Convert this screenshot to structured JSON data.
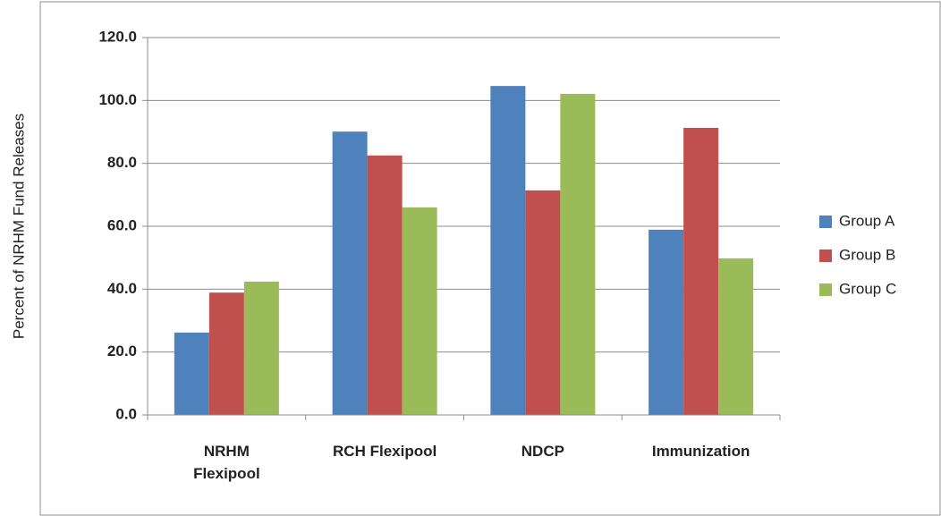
{
  "chart_data": {
    "type": "bar",
    "y_label": "Percent of NRHM Fund Releases",
    "categories": [
      "NRHM Flexipool",
      "RCH Flexipool",
      "NDCP",
      "Immunization"
    ],
    "series": [
      {
        "name": "Group A",
        "color": "#4f81bd",
        "values": [
          26.2,
          90.1,
          104.6,
          58.9
        ]
      },
      {
        "name": "Group B",
        "color": "#c0504d",
        "values": [
          38.9,
          82.5,
          71.4,
          91.3
        ]
      },
      {
        "name": "Group C",
        "color": "#9bbb59",
        "values": [
          42.4,
          66.0,
          102.1,
          49.8
        ]
      }
    ],
    "ylim": [
      0,
      120
    ],
    "yticks": [
      {
        "value": 0,
        "label": "0.0"
      },
      {
        "value": 20,
        "label": "20.0"
      },
      {
        "value": 40,
        "label": "40.0"
      },
      {
        "value": 60,
        "label": "60.0"
      },
      {
        "value": 80,
        "label": "80.0"
      },
      {
        "value": 100,
        "label": "100.0"
      },
      {
        "value": 120,
        "label": "120.0"
      }
    ],
    "grid": true,
    "legend": "right"
  }
}
